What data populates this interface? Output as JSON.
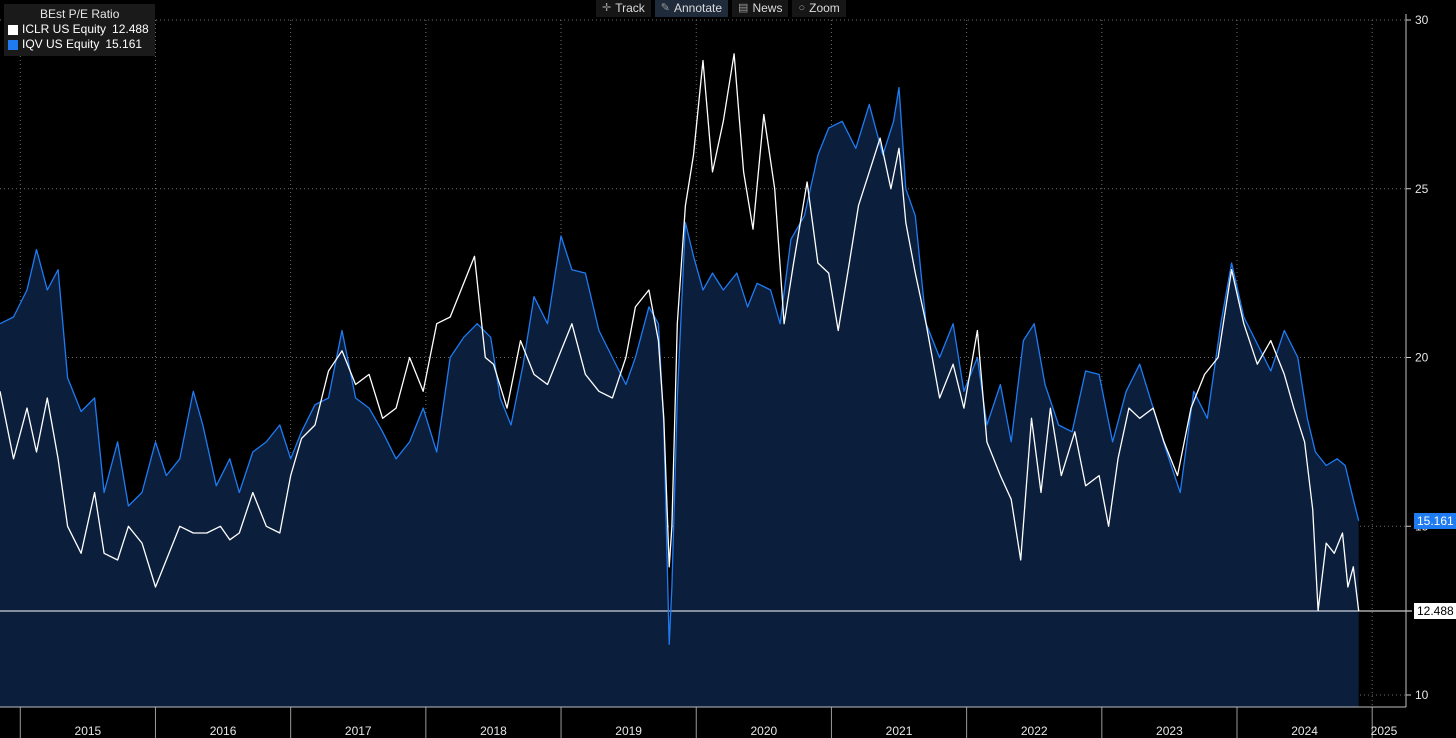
{
  "legend": {
    "title": "BEst P/E Ratio",
    "items": [
      {
        "label": "ICLR US Equity",
        "value": "12.488",
        "color": "#ffffff"
      },
      {
        "label": "IQV US Equity",
        "value": "15.161",
        "color": "#1e7bf2"
      }
    ]
  },
  "toolbar": {
    "items": [
      {
        "label": "Track",
        "icon": "crosshair-icon"
      },
      {
        "label": "Annotate",
        "icon": "pencil-icon"
      },
      {
        "label": "News",
        "icon": "news-icon"
      },
      {
        "label": "Zoom",
        "icon": "zoom-icon"
      }
    ]
  },
  "value_tags": {
    "iqv": "15.161",
    "iclr": "12.488"
  },
  "chart_data": {
    "type": "line",
    "title": "BEst P/E Ratio",
    "xlabel": "",
    "ylabel": "",
    "x_range": [
      2014.85,
      2025.25
    ],
    "ylim": [
      10,
      30
    ],
    "yticks": [
      10,
      15,
      20,
      25,
      30
    ],
    "year_labels": [
      "2015",
      "2016",
      "2017",
      "2018",
      "2019",
      "2020",
      "2021",
      "2022",
      "2023",
      "2024",
      "2025"
    ],
    "grid": true,
    "legend_position": "top-left",
    "series": [
      {
        "name": "IQV US Equity",
        "color": "#1e7bf2",
        "fill": "#0b1e3c",
        "last": 15.161,
        "points": [
          [
            2014.85,
            21.0
          ],
          [
            2014.95,
            21.2
          ],
          [
            2015.05,
            22.0
          ],
          [
            2015.12,
            23.2
          ],
          [
            2015.2,
            22.0
          ],
          [
            2015.28,
            22.6
          ],
          [
            2015.35,
            19.4
          ],
          [
            2015.45,
            18.4
          ],
          [
            2015.55,
            18.8
          ],
          [
            2015.62,
            16.0
          ],
          [
            2015.72,
            17.5
          ],
          [
            2015.8,
            15.6
          ],
          [
            2015.9,
            16.0
          ],
          [
            2016.0,
            17.5
          ],
          [
            2016.08,
            16.5
          ],
          [
            2016.18,
            17.0
          ],
          [
            2016.28,
            19.0
          ],
          [
            2016.35,
            18.0
          ],
          [
            2016.45,
            16.2
          ],
          [
            2016.55,
            17.0
          ],
          [
            2016.62,
            16.0
          ],
          [
            2016.72,
            17.2
          ],
          [
            2016.82,
            17.5
          ],
          [
            2016.92,
            18.0
          ],
          [
            2017.0,
            17.0
          ],
          [
            2017.08,
            17.8
          ],
          [
            2017.18,
            18.6
          ],
          [
            2017.28,
            18.8
          ],
          [
            2017.38,
            20.8
          ],
          [
            2017.48,
            18.8
          ],
          [
            2017.58,
            18.5
          ],
          [
            2017.68,
            17.8
          ],
          [
            2017.78,
            17.0
          ],
          [
            2017.88,
            17.5
          ],
          [
            2017.98,
            18.5
          ],
          [
            2018.08,
            17.2
          ],
          [
            2018.18,
            20.0
          ],
          [
            2018.28,
            20.6
          ],
          [
            2018.38,
            21.0
          ],
          [
            2018.48,
            20.6
          ],
          [
            2018.55,
            18.8
          ],
          [
            2018.63,
            18.0
          ],
          [
            2018.72,
            19.8
          ],
          [
            2018.8,
            21.8
          ],
          [
            2018.9,
            21.0
          ],
          [
            2019.0,
            23.6
          ],
          [
            2019.08,
            22.6
          ],
          [
            2019.18,
            22.5
          ],
          [
            2019.28,
            20.8
          ],
          [
            2019.38,
            20.0
          ],
          [
            2019.48,
            19.2
          ],
          [
            2019.55,
            20.0
          ],
          [
            2019.65,
            21.5
          ],
          [
            2019.72,
            21.0
          ],
          [
            2019.76,
            18.0
          ],
          [
            2019.8,
            11.5
          ],
          [
            2019.82,
            13.2
          ],
          [
            2019.86,
            18.8
          ],
          [
            2019.92,
            24.0
          ],
          [
            2019.98,
            23.0
          ],
          [
            2020.05,
            22.0
          ],
          [
            2020.12,
            22.5
          ],
          [
            2020.2,
            22.0
          ],
          [
            2020.3,
            22.5
          ],
          [
            2020.38,
            21.5
          ],
          [
            2020.45,
            22.2
          ],
          [
            2020.55,
            22.0
          ],
          [
            2020.62,
            21.0
          ],
          [
            2020.7,
            23.5
          ],
          [
            2020.8,
            24.2
          ],
          [
            2020.9,
            26.0
          ],
          [
            2020.98,
            26.8
          ],
          [
            2021.08,
            27.0
          ],
          [
            2021.18,
            26.2
          ],
          [
            2021.28,
            27.5
          ],
          [
            2021.38,
            26.0
          ],
          [
            2021.46,
            27.0
          ],
          [
            2021.5,
            28.0
          ],
          [
            2021.55,
            25.0
          ],
          [
            2021.62,
            24.2
          ],
          [
            2021.7,
            21.0
          ],
          [
            2021.8,
            20.0
          ],
          [
            2021.9,
            21.0
          ],
          [
            2021.98,
            19.0
          ],
          [
            2022.08,
            20.0
          ],
          [
            2022.15,
            18.0
          ],
          [
            2022.25,
            19.2
          ],
          [
            2022.33,
            17.5
          ],
          [
            2022.42,
            20.5
          ],
          [
            2022.5,
            21.0
          ],
          [
            2022.58,
            19.2
          ],
          [
            2022.68,
            18.0
          ],
          [
            2022.78,
            17.8
          ],
          [
            2022.88,
            19.6
          ],
          [
            2022.98,
            19.5
          ],
          [
            2023.08,
            17.5
          ],
          [
            2023.18,
            19.0
          ],
          [
            2023.28,
            19.8
          ],
          [
            2023.38,
            18.5
          ],
          [
            2023.48,
            17.2
          ],
          [
            2023.58,
            16.0
          ],
          [
            2023.68,
            19.0
          ],
          [
            2023.78,
            18.2
          ],
          [
            2023.88,
            21.0
          ],
          [
            2023.96,
            22.8
          ],
          [
            2024.05,
            21.2
          ],
          [
            2024.15,
            20.4
          ],
          [
            2024.25,
            19.6
          ],
          [
            2024.35,
            20.8
          ],
          [
            2024.45,
            20.0
          ],
          [
            2024.52,
            18.2
          ],
          [
            2024.58,
            17.2
          ],
          [
            2024.66,
            16.8
          ],
          [
            2024.74,
            17.0
          ],
          [
            2024.8,
            16.8
          ],
          [
            2024.86,
            15.8
          ],
          [
            2024.9,
            15.161
          ]
        ]
      },
      {
        "name": "ICLR US Equity",
        "color": "#ffffff",
        "fill": "",
        "last": 12.488,
        "points": [
          [
            2014.85,
            19.0
          ],
          [
            2014.95,
            17.0
          ],
          [
            2015.05,
            18.5
          ],
          [
            2015.12,
            17.2
          ],
          [
            2015.2,
            18.8
          ],
          [
            2015.28,
            17.0
          ],
          [
            2015.35,
            15.0
          ],
          [
            2015.45,
            14.2
          ],
          [
            2015.55,
            16.0
          ],
          [
            2015.62,
            14.2
          ],
          [
            2015.72,
            14.0
          ],
          [
            2015.8,
            15.0
          ],
          [
            2015.9,
            14.5
          ],
          [
            2016.0,
            13.2
          ],
          [
            2016.08,
            14.0
          ],
          [
            2016.18,
            15.0
          ],
          [
            2016.28,
            14.8
          ],
          [
            2016.38,
            14.8
          ],
          [
            2016.48,
            15.0
          ],
          [
            2016.55,
            14.6
          ],
          [
            2016.62,
            14.8
          ],
          [
            2016.72,
            16.0
          ],
          [
            2016.82,
            15.0
          ],
          [
            2016.92,
            14.8
          ],
          [
            2017.0,
            16.5
          ],
          [
            2017.08,
            17.6
          ],
          [
            2017.18,
            18.0
          ],
          [
            2017.28,
            19.6
          ],
          [
            2017.38,
            20.2
          ],
          [
            2017.48,
            19.2
          ],
          [
            2017.58,
            19.5
          ],
          [
            2017.68,
            18.2
          ],
          [
            2017.78,
            18.5
          ],
          [
            2017.88,
            20.0
          ],
          [
            2017.98,
            19.0
          ],
          [
            2018.08,
            21.0
          ],
          [
            2018.18,
            21.2
          ],
          [
            2018.28,
            22.2
          ],
          [
            2018.36,
            23.0
          ],
          [
            2018.44,
            20.0
          ],
          [
            2018.5,
            19.8
          ],
          [
            2018.6,
            18.5
          ],
          [
            2018.7,
            20.5
          ],
          [
            2018.8,
            19.5
          ],
          [
            2018.9,
            19.2
          ],
          [
            2019.0,
            20.2
          ],
          [
            2019.08,
            21.0
          ],
          [
            2019.18,
            19.5
          ],
          [
            2019.28,
            19.0
          ],
          [
            2019.38,
            18.8
          ],
          [
            2019.48,
            20.0
          ],
          [
            2019.55,
            21.5
          ],
          [
            2019.65,
            22.0
          ],
          [
            2019.72,
            20.5
          ],
          [
            2019.76,
            18.2
          ],
          [
            2019.8,
            13.8
          ],
          [
            2019.82,
            15.0
          ],
          [
            2019.86,
            21.0
          ],
          [
            2019.92,
            24.5
          ],
          [
            2019.98,
            26.0
          ],
          [
            2020.05,
            28.8
          ],
          [
            2020.12,
            25.5
          ],
          [
            2020.2,
            27.0
          ],
          [
            2020.28,
            29.0
          ],
          [
            2020.35,
            25.5
          ],
          [
            2020.42,
            23.8
          ],
          [
            2020.5,
            27.2
          ],
          [
            2020.58,
            25.0
          ],
          [
            2020.65,
            21.0
          ],
          [
            2020.72,
            22.8
          ],
          [
            2020.82,
            25.2
          ],
          [
            2020.9,
            22.8
          ],
          [
            2020.98,
            22.5
          ],
          [
            2021.05,
            20.8
          ],
          [
            2021.12,
            22.5
          ],
          [
            2021.2,
            24.5
          ],
          [
            2021.28,
            25.5
          ],
          [
            2021.36,
            26.5
          ],
          [
            2021.44,
            25.0
          ],
          [
            2021.5,
            26.2
          ],
          [
            2021.55,
            24.0
          ],
          [
            2021.62,
            22.5
          ],
          [
            2021.7,
            21.0
          ],
          [
            2021.8,
            18.8
          ],
          [
            2021.9,
            19.8
          ],
          [
            2021.98,
            18.5
          ],
          [
            2022.08,
            20.8
          ],
          [
            2022.15,
            17.5
          ],
          [
            2022.25,
            16.5
          ],
          [
            2022.33,
            15.8
          ],
          [
            2022.4,
            14.0
          ],
          [
            2022.48,
            18.2
          ],
          [
            2022.55,
            16.0
          ],
          [
            2022.62,
            18.5
          ],
          [
            2022.7,
            16.5
          ],
          [
            2022.8,
            17.8
          ],
          [
            2022.88,
            16.2
          ],
          [
            2022.98,
            16.5
          ],
          [
            2023.05,
            15.0
          ],
          [
            2023.12,
            17.0
          ],
          [
            2023.2,
            18.5
          ],
          [
            2023.28,
            18.2
          ],
          [
            2023.38,
            18.5
          ],
          [
            2023.46,
            17.5
          ],
          [
            2023.56,
            16.5
          ],
          [
            2023.66,
            18.5
          ],
          [
            2023.76,
            19.5
          ],
          [
            2023.86,
            20.0
          ],
          [
            2023.96,
            22.6
          ],
          [
            2024.05,
            21.0
          ],
          [
            2024.15,
            19.8
          ],
          [
            2024.25,
            20.5
          ],
          [
            2024.35,
            19.5
          ],
          [
            2024.42,
            18.5
          ],
          [
            2024.5,
            17.5
          ],
          [
            2024.56,
            15.5
          ],
          [
            2024.6,
            12.5
          ],
          [
            2024.66,
            14.5
          ],
          [
            2024.72,
            14.2
          ],
          [
            2024.78,
            14.8
          ],
          [
            2024.82,
            13.2
          ],
          [
            2024.86,
            13.8
          ],
          [
            2024.9,
            12.488
          ]
        ]
      }
    ]
  }
}
